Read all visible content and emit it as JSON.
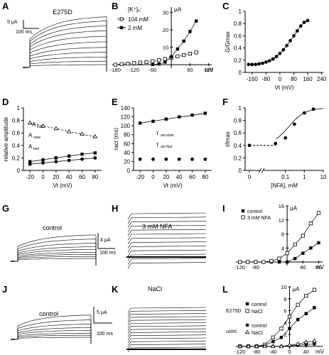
{
  "panel_letters": [
    "A",
    "B",
    "C",
    "D",
    "E",
    "F",
    "G",
    "H",
    "I",
    "J",
    "K",
    "L"
  ],
  "scalebars": {
    "a_current": "5 μA",
    "a_time": "100 ms",
    "g_current": "4 μA",
    "g_time": "100 ms",
    "j_current": "5 μA",
    "j_time": "100 ms"
  },
  "trace_labels": {
    "a": "E275D",
    "g": "control",
    "h": "3 mM NFA",
    "j": "control",
    "k": "NaCl"
  },
  "legend_b": {
    "title": "[K⁺]ₒ:",
    "items": [
      "104 mM",
      "2 mM"
    ]
  },
  "legend_i": {
    "items": [
      "control",
      "3 mM NFA"
    ]
  },
  "legend_l": {
    "groups": [
      "E275D",
      "unini"
    ],
    "items": [
      "control",
      "NaCl",
      "control",
      "NaCl"
    ]
  },
  "axis_unit_labels": {
    "b_y": "μA",
    "b_x": "mV",
    "i_y": "μA",
    "i_x": "mV",
    "l_y": "μA",
    "l_x": "mV"
  },
  "chart_data": [
    {
      "panel": "B",
      "type": "scatter",
      "xlabel": "mV",
      "ylabel": "μA",
      "x_ticks": [
        -180,
        -120,
        -60,
        60,
        120
      ],
      "y_ticks": [
        10,
        20,
        30
      ],
      "xlim": [
        -190,
        130
      ],
      "ylim": [
        -2,
        33
      ],
      "series": [
        {
          "name": "104 mM",
          "x": [
            -180,
            -160,
            -140,
            -120,
            -100,
            -80,
            -60,
            -40,
            -20,
            0,
            20,
            40,
            60,
            80
          ],
          "y": [
            0,
            0.3,
            0.6,
            0.9,
            1.2,
            1.5,
            2.0,
            2.6,
            3.3,
            4.0,
            4.8,
            5.5,
            6.3,
            7.0
          ]
        },
        {
          "name": "2 mM",
          "x": [
            -60,
            -40,
            -20,
            0,
            20,
            40,
            60,
            80
          ],
          "y": [
            0.1,
            0.4,
            1.5,
            4.5,
            9,
            13.5,
            19,
            25
          ]
        }
      ]
    },
    {
      "panel": "C",
      "type": "scatter",
      "xlabel": "Vt (mV)",
      "ylabel": "G/Gmax",
      "x_ticks": [
        -160,
        -80,
        0,
        80,
        160,
        240
      ],
      "y_ticks": [
        0,
        0.2,
        0.4,
        0.6,
        0.8,
        1.0
      ],
      "xlim": [
        -200,
        250
      ],
      "ylim": [
        0,
        1.0
      ],
      "series": [
        {
          "x": [
            -180,
            -160,
            -140,
            -120,
            -100,
            -80,
            -60,
            -40,
            -20,
            0,
            20,
            40,
            60,
            80,
            100,
            120,
            140,
            160
          ],
          "y": [
            0.13,
            0.13,
            0.13,
            0.14,
            0.15,
            0.17,
            0.19,
            0.22,
            0.26,
            0.31,
            0.37,
            0.44,
            0.52,
            0.6,
            0.68,
            0.76,
            0.82,
            0.85
          ]
        }
      ]
    },
    {
      "panel": "D",
      "type": "line",
      "xlabel": "Vt (mV)",
      "ylabel": "relative amplitude",
      "x_ticks": [
        -20,
        0,
        20,
        40,
        60,
        80
      ],
      "y_ticks": [
        0,
        0.2,
        0.4,
        0.6,
        0.8,
        1.0
      ],
      "xlim": [
        -30,
        90
      ],
      "ylim": [
        0,
        1.0
      ],
      "series": [
        {
          "name": "A_slow",
          "x": [
            -20,
            0,
            20,
            40,
            60,
            80
          ],
          "y": [
            0.14,
            0.17,
            0.2,
            0.23,
            0.26,
            0.28
          ]
        },
        {
          "name": "A_fast",
          "x": [
            -20,
            0,
            20,
            40,
            60,
            80
          ],
          "y": [
            0.1,
            0.12,
            0.14,
            0.16,
            0.18,
            0.2
          ]
        },
        {
          "name": "A_inst",
          "x": [
            -20,
            0,
            20,
            40,
            60,
            80
          ],
          "y": [
            0.76,
            0.71,
            0.67,
            0.62,
            0.58,
            0.54
          ]
        }
      ]
    },
    {
      "panel": "E",
      "type": "line",
      "xlabel": "Vt (mV)",
      "ylabel": "τact (ms)",
      "x_ticks": [
        -20,
        0,
        20,
        40,
        60,
        80
      ],
      "y_ticks": [
        0,
        20,
        40,
        60,
        80,
        100,
        120,
        140
      ],
      "xlim": [
        -30,
        90
      ],
      "ylim": [
        0,
        140
      ],
      "series": [
        {
          "name": "τact-slow",
          "x": [
            -20,
            0,
            20,
            40,
            60,
            80
          ],
          "y": [
            106,
            110,
            115,
            120,
            124,
            128
          ]
        },
        {
          "name": "τact-fast",
          "x": [
            -20,
            0,
            20,
            40,
            60,
            80
          ],
          "y": [
            25,
            25,
            25,
            25,
            25,
            25
          ]
        }
      ]
    },
    {
      "panel": "F",
      "type": "scatter",
      "xlabel": "[NFA], mM",
      "ylabel": "I/Imax",
      "x_ticks": [
        0,
        0.1,
        1,
        10
      ],
      "y_ticks": [
        0,
        0.2,
        0.4,
        0.6,
        0.8,
        1.0
      ],
      "ylim": [
        0,
        1.0
      ],
      "series": [
        {
          "x": [
            0,
            0.03,
            0.1,
            0.3,
            1,
            3
          ],
          "y": [
            0.4,
            0.43,
            0.52,
            0.74,
            0.92,
            0.98
          ]
        }
      ]
    },
    {
      "panel": "I",
      "type": "scatter",
      "xlabel": "mV",
      "ylabel": "μA",
      "x_ticks": [
        -120,
        -80,
        40,
        80
      ],
      "y_ticks": [
        4,
        8,
        12,
        16
      ],
      "xlim": [
        -130,
        90
      ],
      "ylim": [
        -1,
        16
      ],
      "series": [
        {
          "name": "control",
          "x": [
            -120,
            -100,
            -80,
            -60,
            -40,
            -20,
            0,
            20,
            40,
            60,
            80
          ],
          "y": [
            0,
            0,
            0,
            0,
            0,
            0,
            0,
            1,
            2.5,
            4,
            5.5
          ]
        },
        {
          "name": "3 mM NFA",
          "x": [
            -120,
            -100,
            -80,
            -60,
            -40,
            -20,
            0,
            20,
            40,
            60,
            80
          ],
          "y": [
            0,
            0,
            0,
            0,
            0.3,
            1,
            2.5,
            5,
            7.5,
            11,
            14
          ]
        }
      ]
    },
    {
      "panel": "L",
      "type": "scatter",
      "xlabel": "mV",
      "ylabel": "μA",
      "x_ticks": [
        -120,
        -80,
        -40,
        0,
        40
      ],
      "y_ticks": [
        2,
        4,
        6,
        8,
        10
      ],
      "xlim": [
        -130,
        80
      ],
      "ylim": [
        -0.5,
        10
      ],
      "series": [
        {
          "name": "E275D control",
          "x": [
            -120,
            -100,
            -80,
            -60,
            -40,
            -20,
            0,
            20,
            40,
            60
          ],
          "y": [
            0,
            0,
            0,
            0.2,
            0.8,
            1.5,
            3,
            4.5,
            5.5,
            6.5
          ]
        },
        {
          "name": "E275D NaCl",
          "x": [
            -120,
            -100,
            -80,
            -60,
            -40,
            -20,
            0,
            20,
            40,
            60
          ],
          "y": [
            0,
            0,
            0,
            0.3,
            1.5,
            3,
            5,
            7,
            8.5,
            9.5
          ]
        },
        {
          "name": "unini control",
          "x": [
            -120,
            -100,
            -80,
            -60,
            -40,
            -20,
            0,
            20,
            40,
            60
          ],
          "y": [
            0,
            0,
            0,
            0,
            0,
            0,
            0.1,
            0.2,
            0.3,
            0.4
          ]
        },
        {
          "name": "unini NaCl",
          "x": [
            -120,
            -100,
            -80,
            -60,
            -40,
            -20,
            0,
            20,
            40,
            60
          ],
          "y": [
            0,
            0,
            0,
            0,
            0,
            0,
            0.2,
            0.4,
            0.7,
            0.9
          ]
        }
      ]
    }
  ]
}
